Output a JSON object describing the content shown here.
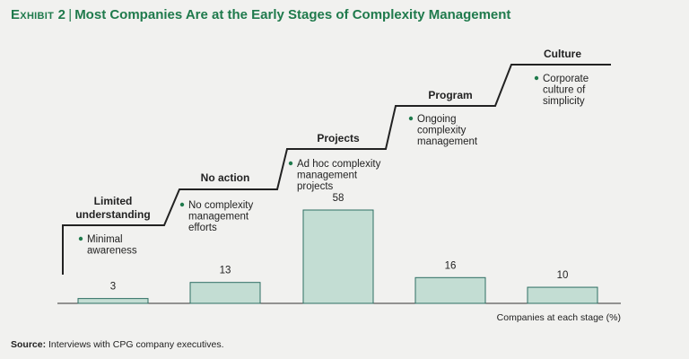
{
  "header": {
    "exhibit": "Exhibit 2",
    "separator": "|",
    "title": "Most Companies Are at the Early Stages of Complexity Management"
  },
  "source": {
    "label": "Source:",
    "text": "Interviews with CPG company executives."
  },
  "colors": {
    "bar_fill": "#c3ddd3",
    "bar_stroke": "#2e6e63",
    "title": "#1f7a4c",
    "bullet": "#1f7a4c",
    "staircase": "#222222"
  },
  "chart_data": {
    "type": "bar",
    "categories": [
      "Limited understanding",
      "No action",
      "Projects",
      "Program",
      "Culture"
    ],
    "values": [
      3,
      13,
      58,
      16,
      10
    ],
    "xlabel": "Companies at each stage (%)",
    "ylabel": "",
    "ylim": [
      0,
      58
    ],
    "grid": false,
    "stages": [
      {
        "title_lines": [
          "Limited",
          "understanding"
        ],
        "bullet_lines": [
          "Minimal",
          "awareness"
        ]
      },
      {
        "title_lines": [
          "No action"
        ],
        "bullet_lines": [
          "No complexity",
          "management",
          "efforts"
        ]
      },
      {
        "title_lines": [
          "Projects"
        ],
        "bullet_lines": [
          "Ad hoc complexity",
          "management",
          "projects"
        ]
      },
      {
        "title_lines": [
          "Program"
        ],
        "bullet_lines": [
          "Ongoing",
          "complexity",
          "management"
        ]
      },
      {
        "title_lines": [
          "Culture"
        ],
        "bullet_lines": [
          "Corporate",
          "culture of",
          "simplicity"
        ]
      }
    ]
  }
}
